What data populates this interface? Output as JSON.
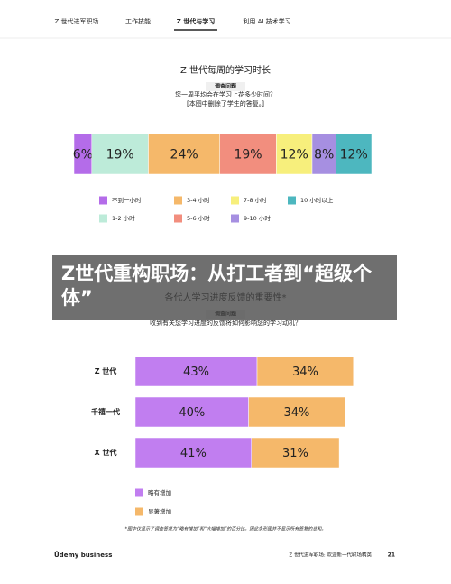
{
  "nav": [
    "Z 世代进军职场",
    "工作技能",
    "Z 世代与学习",
    "利用 AI 技术学习"
  ],
  "nav_active": 2,
  "overlay_title": "Z世代重构职场：从打工者到“超级个体”",
  "chart_data": [
    {
      "type": "bar",
      "stacked": true,
      "orientation": "horizontal",
      "title": "Z 世代每周的学习时长",
      "survey_label": "调查问题",
      "question": "您一周平均会在学习上花多少时间？",
      "note": "[本图中删除了学生的答复。]",
      "categories": [
        null
      ],
      "series": [
        {
          "name": "不到一小时",
          "color": "#b46ce9",
          "values": [
            6
          ],
          "value_labels": [
            "6%"
          ]
        },
        {
          "name": "1-2 小时",
          "color": "#bdebd9",
          "values": [
            19
          ],
          "value_labels": [
            "19%"
          ]
        },
        {
          "name": "3-4 小时",
          "color": "#f5b86a",
          "values": [
            24
          ],
          "value_labels": [
            "24%"
          ]
        },
        {
          "name": "5-6 小时",
          "color": "#f28e7e",
          "values": [
            19
          ],
          "value_labels": [
            "19%"
          ]
        },
        {
          "name": "7-8 小时",
          "color": "#f7ef7c",
          "values": [
            12
          ],
          "value_labels": [
            "12%"
          ]
        },
        {
          "name": "9-10 小时",
          "color": "#a68fe1",
          "values": [
            8
          ],
          "value_labels": [
            "8%"
          ]
        },
        {
          "name": "10 小时以上",
          "color": "#4db7bf",
          "values": [
            12
          ],
          "value_labels": [
            "12%"
          ]
        }
      ]
    },
    {
      "type": "bar",
      "stacked": true,
      "orientation": "horizontal",
      "title": "各代人学习进度反馈的重要性*",
      "survey_label": "调查问题",
      "question": "收到有关您学习进度的反馈将如何影响您的学习动机？",
      "categories": [
        "Z 世代",
        "千禧一代",
        "X 世代"
      ],
      "series": [
        {
          "name": "略有增加",
          "color": "#c17ef0",
          "values": [
            43,
            40,
            41
          ],
          "value_labels": [
            "43%",
            "40%",
            "41%"
          ]
        },
        {
          "name": "显著增加",
          "color": "#f5b86a",
          "values": [
            34,
            34,
            31
          ],
          "value_labels": [
            "34%",
            "34%",
            "31%"
          ]
        }
      ],
      "footnote": "*图中仅显示了调查答复为“略有增加”和“大幅增加”的百分比。因此条形图并不显示所有答复的总和。"
    }
  ],
  "footer": {
    "brand": "Ûdemy business",
    "text": "Z 世代进军职场: 欢迎新一代职场精英",
    "page": "21"
  }
}
